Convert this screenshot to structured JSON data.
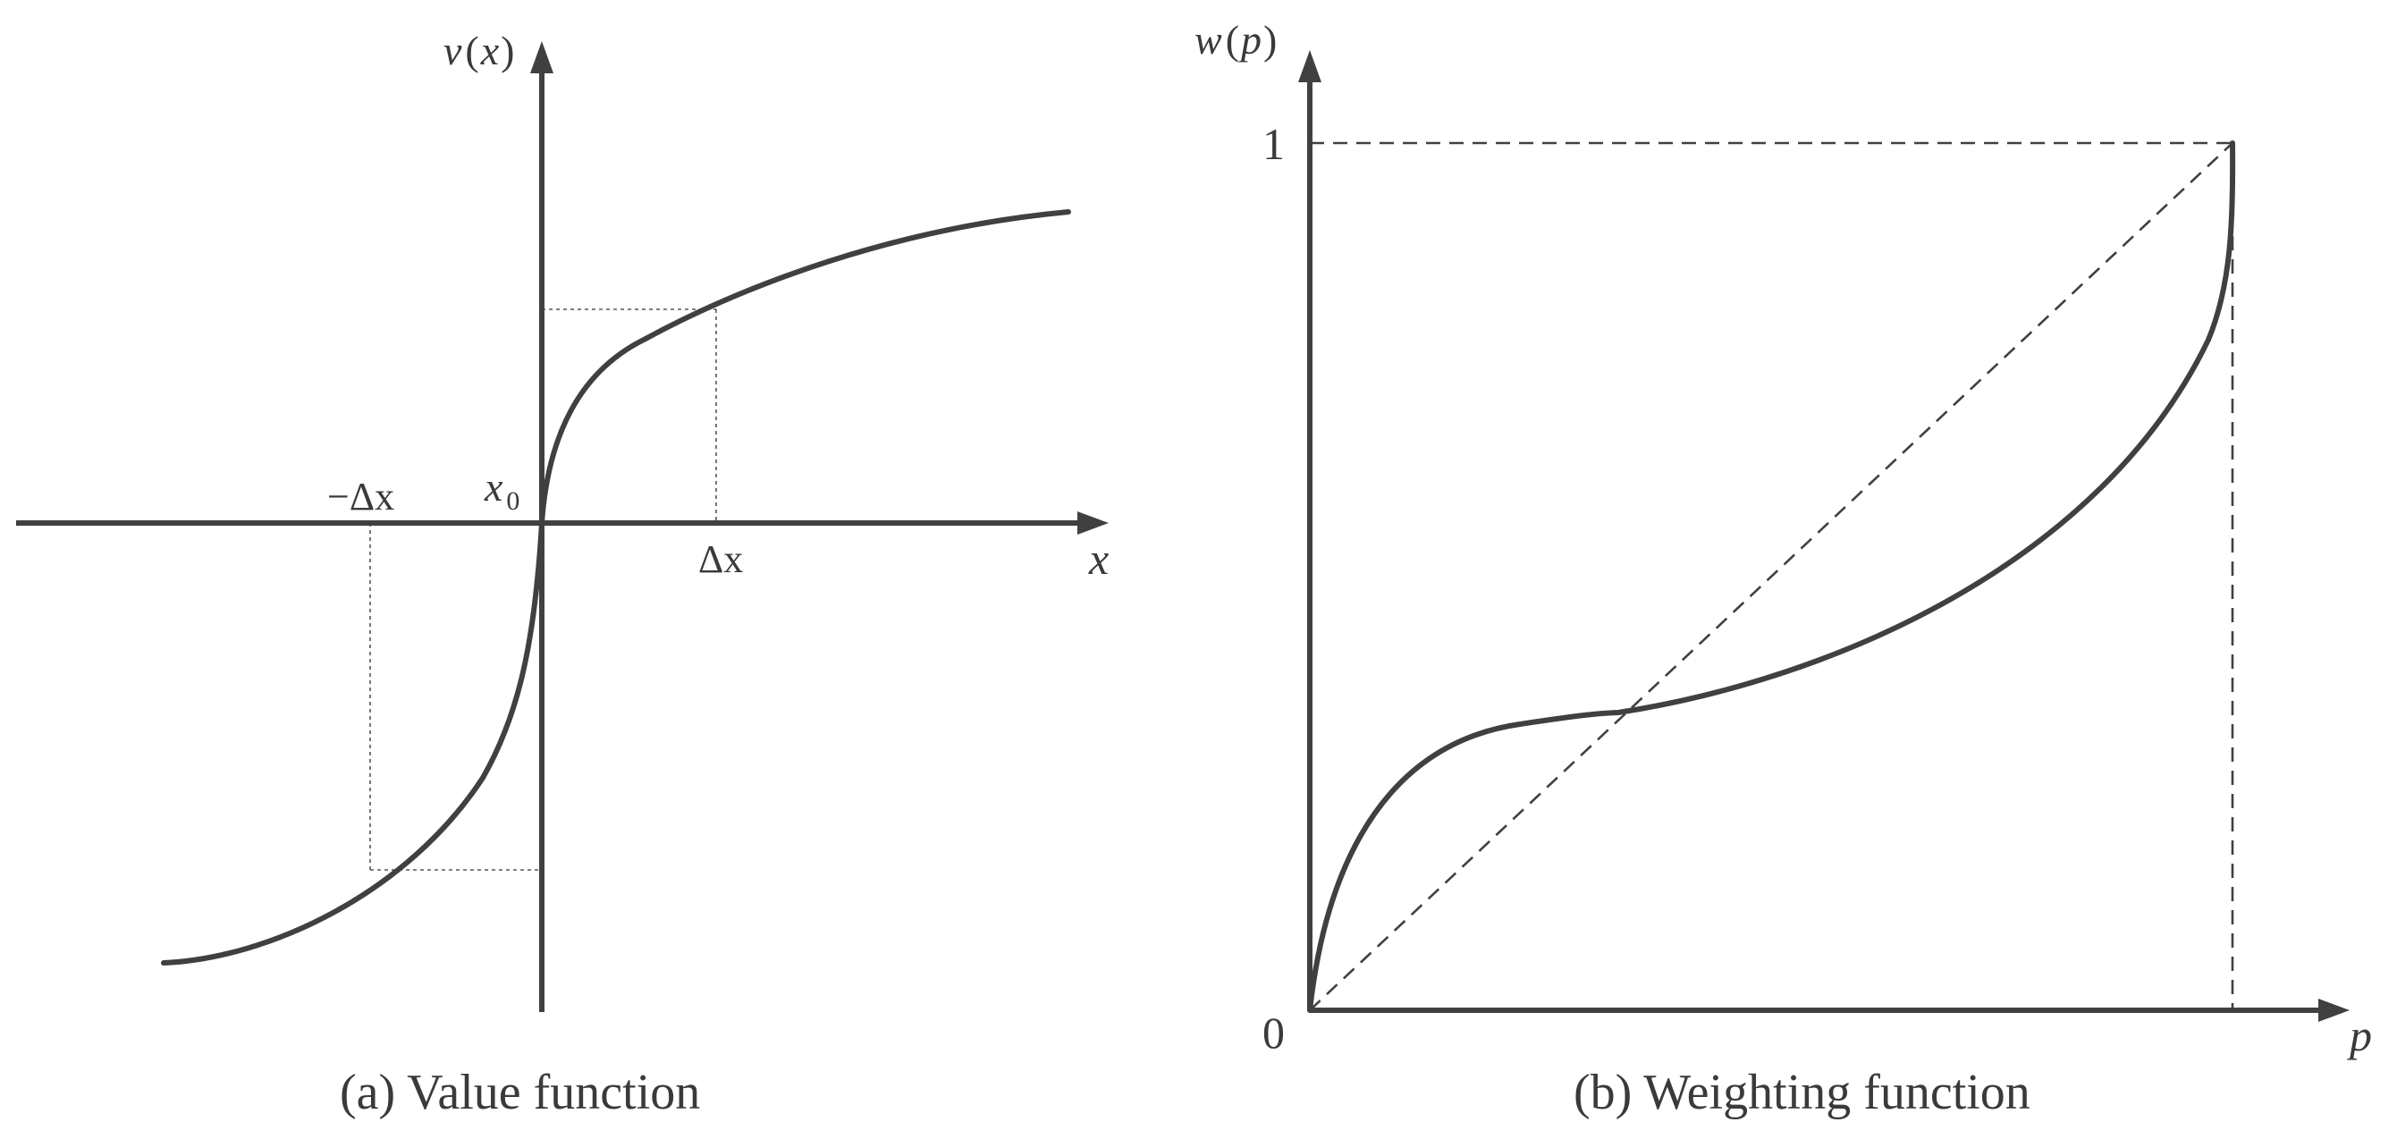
{
  "panel_a": {
    "caption": "(a) Value function",
    "y_axis_label_fn": "v",
    "y_axis_label_open": "(",
    "y_axis_label_var": "x",
    "y_axis_label_close": ")",
    "x_axis_label": "x",
    "origin_label_main": "x",
    "origin_label_sub": "0",
    "tick_pos_label": "Δx",
    "tick_neg_label": "−Δx"
  },
  "panel_b": {
    "caption": "(b) Weighting function",
    "y_axis_label_fn": "w",
    "y_axis_label_open": "(",
    "y_axis_label_var": "p",
    "y_axis_label_close": ")",
    "x_axis_label": "p",
    "origin_label": "0",
    "y_tick_label": "1"
  },
  "colors": {
    "ink": "#404040",
    "text": "#3a3a3a",
    "background": "#ffffff"
  }
}
